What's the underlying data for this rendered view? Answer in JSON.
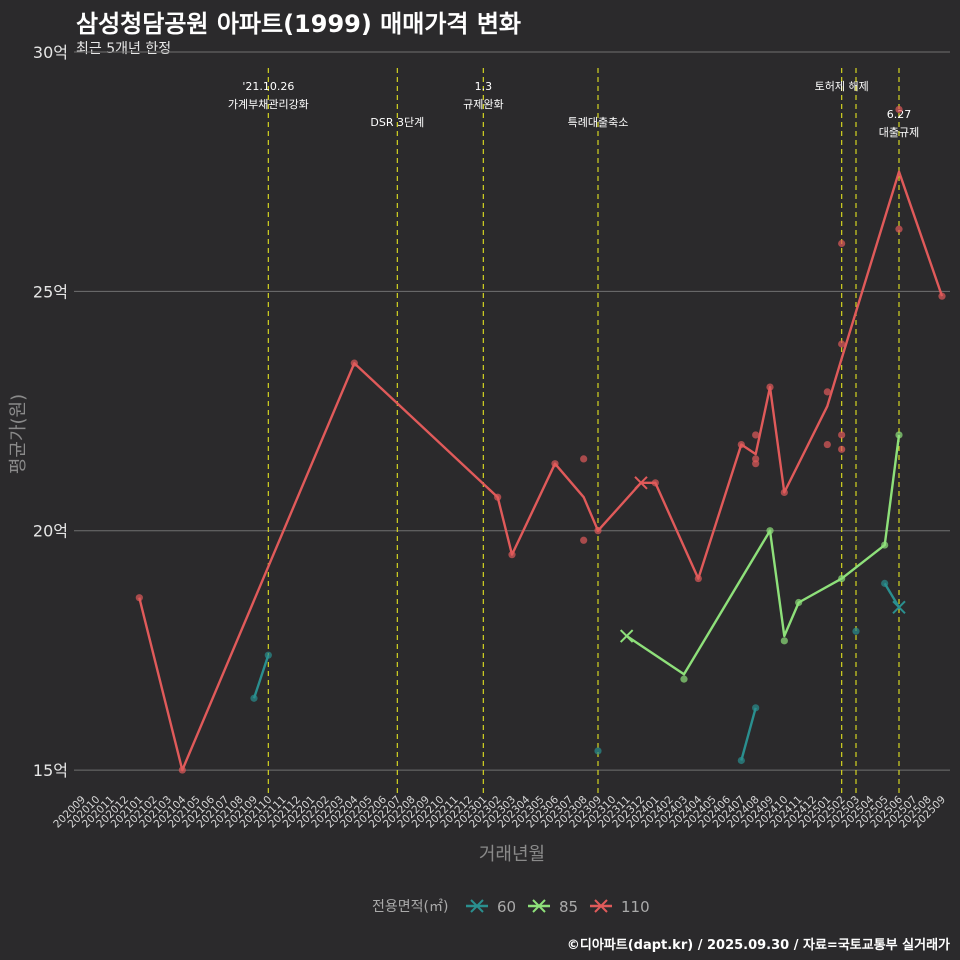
{
  "chart_data": {
    "type": "line",
    "title": "삼성청담공원 아파트(1999) 매매가격 변화",
    "subtitle": "최근 5개년 한정",
    "xlabel": "거래년월",
    "ylabel": "평균가(원)",
    "ylim": [
      14.5,
      30
    ],
    "yticks": [
      {
        "value": 15,
        "label": "15억"
      },
      {
        "value": 20,
        "label": "20억"
      },
      {
        "value": 25,
        "label": "25억"
      },
      {
        "value": 30,
        "label": "30억"
      }
    ],
    "categories": [
      "202009",
      "202010",
      "202011",
      "202012",
      "202101",
      "202102",
      "202103",
      "202104",
      "202105",
      "202106",
      "202107",
      "202108",
      "202109",
      "202110",
      "202111",
      "202112",
      "202201",
      "202202",
      "202203",
      "202204",
      "202205",
      "202206",
      "202207",
      "202208",
      "202209",
      "202210",
      "202211",
      "202212",
      "202301",
      "202302",
      "202303",
      "202304",
      "202305",
      "202306",
      "202307",
      "202308",
      "202309",
      "202310",
      "202311",
      "202312",
      "202401",
      "202402",
      "202403",
      "202404",
      "202405",
      "202406",
      "202407",
      "202408",
      "202409",
      "202410",
      "202411",
      "202412",
      "202501",
      "202502",
      "202503",
      "202504",
      "202505",
      "202506",
      "202507",
      "202508",
      "202509"
    ],
    "legend_title": "전용면적(㎡)",
    "series": [
      {
        "name": "60",
        "color": "#2a8f8f",
        "line": [
          [
            "202109",
            16.5
          ],
          [
            "202110",
            17.4
          ],
          null,
          [
            "202407",
            15.2
          ],
          [
            "202408",
            16.3
          ],
          null,
          [
            "202505",
            18.9
          ],
          [
            "202506",
            18.4
          ]
        ],
        "points": [
          [
            "202109",
            16.5
          ],
          [
            "202110",
            17.4
          ],
          [
            "202309",
            15.4
          ],
          [
            "202407",
            15.2
          ],
          [
            "202408",
            16.3
          ],
          [
            "202503",
            17.9
          ],
          [
            "202505",
            18.9
          ]
        ],
        "crosses": [
          [
            "202506",
            18.4
          ]
        ]
      },
      {
        "name": "85",
        "color": "#8ee07a",
        "line": [
          [
            "202311",
            17.8
          ],
          [
            "202403",
            17.0
          ],
          [
            "202409",
            20.0
          ],
          [
            "202410",
            17.8
          ],
          [
            "202411",
            18.5
          ],
          [
            "202502",
            19.0
          ],
          [
            "202505",
            19.7
          ],
          [
            "202506",
            22.0
          ]
        ],
        "points": [
          [
            "202403",
            16.9
          ],
          [
            "202409",
            20.0
          ],
          [
            "202410",
            17.7
          ],
          [
            "202411",
            18.5
          ],
          [
            "202502",
            19.0
          ],
          [
            "202505",
            19.7
          ],
          [
            "202506",
            22.0
          ]
        ],
        "crosses": [
          [
            "202311",
            17.8
          ]
        ]
      },
      {
        "name": "110",
        "color": "#e05a5a",
        "line": [
          [
            "202101",
            18.6
          ],
          [
            "202104",
            15.0
          ],
          [
            "202204",
            23.5
          ],
          [
            "202302",
            20.7
          ],
          [
            "202303",
            19.5
          ],
          [
            "202306",
            21.4
          ],
          [
            "202308",
            20.7
          ],
          [
            "202309",
            20.0
          ],
          [
            "202312",
            21.0
          ],
          [
            "202401",
            21.0
          ],
          [
            "202404",
            19.0
          ],
          [
            "202407",
            21.8
          ],
          [
            "202408",
            21.6
          ],
          [
            "202409",
            23.0
          ],
          [
            "202410",
            20.8
          ],
          [
            "202501",
            22.6
          ],
          [
            "202502",
            23.6
          ],
          [
            "202506",
            27.5
          ],
          [
            "202509",
            24.9
          ]
        ],
        "points": [
          [
            "202101",
            18.6
          ],
          [
            "202104",
            15.0
          ],
          [
            "202204",
            23.5
          ],
          [
            "202302",
            20.7
          ],
          [
            "202303",
            19.5
          ],
          [
            "202306",
            21.4
          ],
          [
            "202308",
            21.5
          ],
          [
            "202308",
            19.8
          ],
          [
            "202309",
            20.0
          ],
          [
            "202401",
            21.0
          ],
          [
            "202404",
            19.0
          ],
          [
            "202407",
            21.8
          ],
          [
            "202408",
            22.0
          ],
          [
            "202408",
            21.5
          ],
          [
            "202408",
            21.4
          ],
          [
            "202409",
            23.0
          ],
          [
            "202410",
            20.8
          ],
          [
            "202501",
            22.9
          ],
          [
            "202501",
            21.8
          ],
          [
            "202502",
            26.0
          ],
          [
            "202502",
            23.9
          ],
          [
            "202502",
            22.0
          ],
          [
            "202502",
            21.7
          ],
          [
            "202506",
            28.8
          ],
          [
            "202506",
            26.3
          ],
          [
            "202509",
            24.9
          ]
        ],
        "crosses": [
          [
            "202312",
            21.0
          ]
        ]
      }
    ],
    "annotations": [
      {
        "month": "202110",
        "lines": [
          "'21.10.26",
          "가계부채관리강화"
        ],
        "level": "high"
      },
      {
        "month": "202207",
        "lines": [
          "DSR 3단계"
        ],
        "level": "low"
      },
      {
        "month": "202301",
        "lines": [
          "1.3",
          "규제완화"
        ],
        "level": "high"
      },
      {
        "month": "202309",
        "lines": [
          "특례대출축소"
        ],
        "level": "low"
      },
      {
        "month": "202502",
        "lines": [
          "토허제 해제"
        ],
        "level": "high"
      },
      {
        "month": "202503",
        "lines": [],
        "level": "none"
      },
      {
        "month": "202506",
        "lines": [
          "6.27",
          "대출규제"
        ],
        "level": "mid"
      }
    ]
  },
  "caption": "©디아파트(dapt.kr) / 2025.09.30 / 자료=국토교통부 실거래가"
}
